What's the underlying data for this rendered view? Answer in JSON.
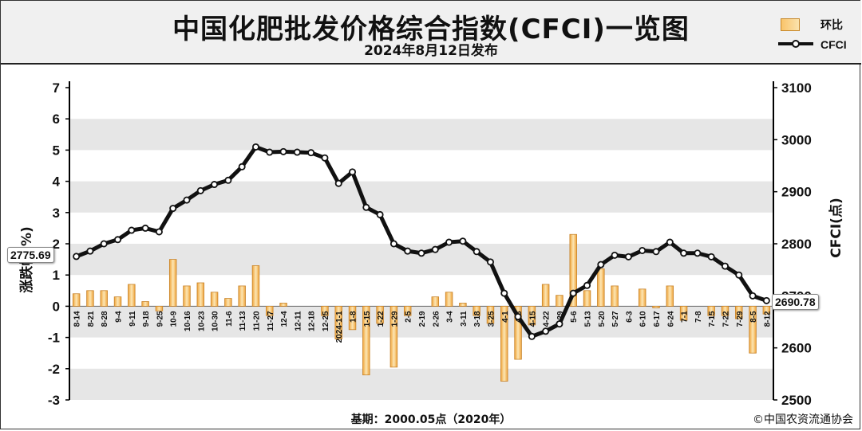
{
  "header": {
    "title": "中国化肥批发价格综合指数(CFCI)一览图",
    "subtitle": "2024年8月12日发布"
  },
  "legend": {
    "bar_label": "环比",
    "line_label": "CFCI"
  },
  "footer": {
    "base": "基期：2000.05点（2020年）",
    "copyright": "©中国农资流通协会"
  },
  "callouts": {
    "first_value": "2775.69",
    "last_value": "2690.78"
  },
  "colors": {
    "bar_fill_light": "#fce6b4",
    "bar_fill_dark": "#f0a43a",
    "bar_stroke": "#c7832a",
    "line": "#111111",
    "band": "#e6e6e6"
  },
  "chart_data": {
    "type": "bar+line",
    "categories": [
      "8-14",
      "8-21",
      "8-28",
      "9-4",
      "9-11",
      "9-18",
      "9-25",
      "10-9",
      "10-16",
      "10-23",
      "10-30",
      "11-6",
      "11-13",
      "11-20",
      "11-27",
      "12-4",
      "12-11",
      "12-18",
      "12-25",
      "2024-1-1",
      "1-8",
      "1-15",
      "1-22",
      "1-29",
      "2-5",
      "2-19",
      "2-26",
      "3-4",
      "3-11",
      "3-18",
      "3-25",
      "4-1",
      "4-8",
      "4-15",
      "4-22",
      "4-29",
      "5-6",
      "5-13",
      "5-20",
      "5-27",
      "6-3",
      "6-10",
      "6-17",
      "6-24",
      "7-1",
      "7-8",
      "7-15",
      "7-22",
      "7-29",
      "8-5",
      "8-12"
    ],
    "series": [
      {
        "name": "环比",
        "type": "bar",
        "axis": "left",
        "values": [
          0.4,
          0.5,
          0.5,
          0.3,
          0.7,
          0.15,
          -0.15,
          1.5,
          0.65,
          0.75,
          0.45,
          0.25,
          0.65,
          1.3,
          -0.3,
          0.1,
          0,
          0,
          -0.3,
          -1.05,
          -0.75,
          -2.2,
          -0.55,
          -1.95,
          -0.3,
          0,
          0.3,
          0.45,
          0.1,
          -0.3,
          -0.55,
          -2.4,
          -1.7,
          -0.6,
          0.7,
          0.35,
          2.3,
          0.5,
          1.2,
          0.65,
          0,
          0.55,
          -0.05,
          0.65,
          -0.45,
          0,
          -0.3,
          -0.3,
          -0.4,
          -1.5,
          -0.25
        ]
      },
      {
        "name": "CFCI",
        "type": "line",
        "axis": "right",
        "values": [
          2775.69,
          2786,
          2800,
          2808,
          2826,
          2830,
          2823,
          2868,
          2884,
          2902,
          2914,
          2922,
          2948,
          2986,
          2976,
          2977,
          2976,
          2975,
          2965,
          2916,
          2938,
          2870,
          2856,
          2800,
          2786,
          2782,
          2789,
          2803,
          2805,
          2785,
          2765,
          2705,
          2660,
          2622,
          2632,
          2646,
          2705,
          2720,
          2760,
          2778,
          2775,
          2787,
          2785,
          2803,
          2782,
          2782,
          2775,
          2757,
          2740,
          2700,
          2690.78
        ]
      }
    ],
    "y_left": {
      "label": "涨跌幅(%)",
      "ylim": [
        -3,
        7
      ],
      "ticks": [
        -3,
        -2,
        -1,
        0,
        1,
        2,
        3,
        4,
        5,
        6,
        7
      ]
    },
    "y_right": {
      "label": "CFCI(点)",
      "ylim": [
        2500,
        3100
      ],
      "ticks": [
        2500,
        2600,
        2700,
        2800,
        2900,
        3000,
        3100
      ]
    },
    "grid": "alternating horizontal bands",
    "legend_position": "top-right"
  }
}
